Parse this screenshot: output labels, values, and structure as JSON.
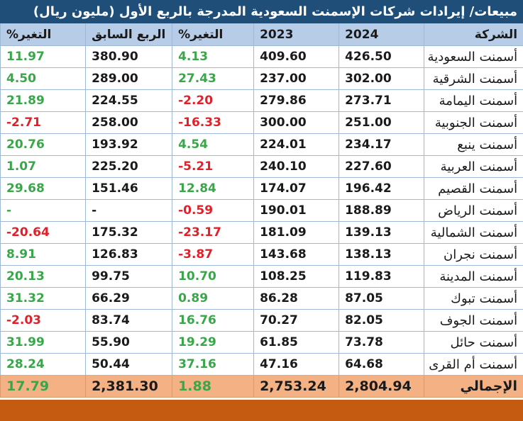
{
  "title": "مبيعات/ إيرادات شركات الإسمنت السعودية المدرجة بالربع الأول (مليون ريال)",
  "headers": {
    "company": "الشركة",
    "y2024": "2024",
    "y2023": "2023",
    "change_yoy": "التغير%",
    "prev_quarter": "الربع السابق",
    "change_qoq": "التغير%"
  },
  "rows": [
    {
      "company": "أسمنت السعودية",
      "y2024": "426.50",
      "y2023": "409.60",
      "change_yoy": "4.13",
      "prev_quarter": "380.90",
      "change_qoq": "11.97"
    },
    {
      "company": "أسمنت الشرقية",
      "y2024": "302.00",
      "y2023": "237.00",
      "change_yoy": "27.43",
      "prev_quarter": "289.00",
      "change_qoq": "4.50"
    },
    {
      "company": "أسمنت اليمامة",
      "y2024": "273.71",
      "y2023": "279.86",
      "change_yoy": "-2.20",
      "prev_quarter": "224.55",
      "change_qoq": "21.89"
    },
    {
      "company": "أسمنت الجنوبية",
      "y2024": "251.00",
      "y2023": "300.00",
      "change_yoy": "-16.33",
      "prev_quarter": "258.00",
      "change_qoq": "-2.71"
    },
    {
      "company": "أسمنت ينبع",
      "y2024": "234.17",
      "y2023": "224.01",
      "change_yoy": "4.54",
      "prev_quarter": "193.92",
      "change_qoq": "20.76"
    },
    {
      "company": "أسمنت العربية",
      "y2024": "227.60",
      "y2023": "240.10",
      "change_yoy": "-5.21",
      "prev_quarter": "225.20",
      "change_qoq": "1.07"
    },
    {
      "company": "أسمنت القصيم",
      "y2024": "196.42",
      "y2023": "174.07",
      "change_yoy": "12.84",
      "prev_quarter": "151.46",
      "change_qoq": "29.68"
    },
    {
      "company": "أسمنت الرياض",
      "y2024": "188.89",
      "y2023": "190.01",
      "change_yoy": "-0.59",
      "prev_quarter": "-",
      "change_qoq": "-"
    },
    {
      "company": "أسمنت الشمالية",
      "y2024": "139.13",
      "y2023": "181.09",
      "change_yoy": "-23.17",
      "prev_quarter": "175.32",
      "change_qoq": "-20.64"
    },
    {
      "company": "أسمنت نجران",
      "y2024": "138.13",
      "y2023": "143.68",
      "change_yoy": "-3.87",
      "prev_quarter": "126.83",
      "change_qoq": "8.91"
    },
    {
      "company": "أسمنت المدينة",
      "y2024": "119.83",
      "y2023": "108.25",
      "change_yoy": "10.70",
      "prev_quarter": "99.75",
      "change_qoq": "20.13"
    },
    {
      "company": "أسمنت تبوك",
      "y2024": "87.05",
      "y2023": "86.28",
      "change_yoy": "0.89",
      "prev_quarter": "66.29",
      "change_qoq": "31.32"
    },
    {
      "company": "أسمنت الجوف",
      "y2024": "82.05",
      "y2023": "70.27",
      "change_yoy": "16.76",
      "prev_quarter": "83.74",
      "change_qoq": "-2.03"
    },
    {
      "company": "أسمنت حائل",
      "y2024": "73.78",
      "y2023": "61.85",
      "change_yoy": "19.29",
      "prev_quarter": "55.90",
      "change_qoq": "31.99"
    },
    {
      "company": "أسمنت أم القرى",
      "y2024": "64.68",
      "y2023": "47.16",
      "change_yoy": "37.16",
      "prev_quarter": "50.44",
      "change_qoq": "28.24"
    }
  ],
  "total": {
    "company": "الإجمالي",
    "y2024": "2,804.94",
    "y2023": "2,753.24",
    "change_yoy": "1.88",
    "prev_quarter": "2,381.30",
    "change_qoq": "17.79"
  },
  "colors": {
    "title_bg": "#1f4e79",
    "header_bg": "#b7cde7",
    "total_bg": "#f4b183",
    "footer_bg": "#c55a11",
    "positive": "#3aa64a",
    "negative": "#e0202a"
  }
}
